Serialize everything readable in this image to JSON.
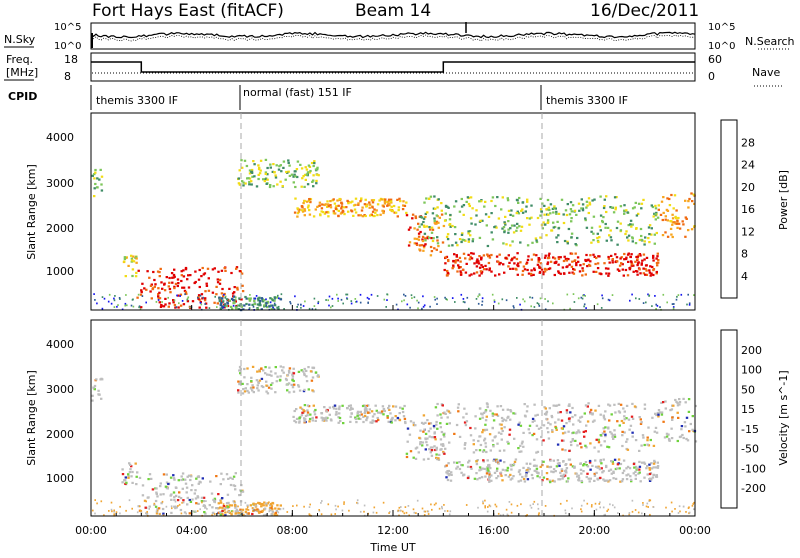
{
  "header": {
    "station": "Fort Hays East (fitACF)",
    "beam": "Beam 14",
    "date": "16/Dec/2011"
  },
  "status_panels": {
    "nsky_label": "N.Sky",
    "nsearch_label": "N.Search",
    "noise_ticks": [
      "10^5",
      "10^0"
    ],
    "noise_right_ticks": [
      "10^5",
      "10^0"
    ],
    "freq_label": "Freq.",
    "freq_unit": "[MHz]",
    "freq_ticks": [
      "18",
      "8"
    ],
    "nave_label": "Nave",
    "nave_ticks": [
      "60",
      "0"
    ],
    "cpid_label": "CPID",
    "modes": [
      {
        "name": "themis 3300 IF",
        "start_h": 0,
        "end_h": 6
      },
      {
        "name": "normal (fast) 151 IF",
        "start_h": 6,
        "end_h": 18
      },
      {
        "name": "themis 3300 IF",
        "start_h": 18,
        "end_h": 24
      }
    ],
    "freq_steps": [
      {
        "start_h": 0,
        "end_h": 2.0,
        "mhz": 15.5
      },
      {
        "start_h": 2.0,
        "end_h": 14.0,
        "mhz": 10.5
      },
      {
        "start_h": 14.0,
        "end_h": 24,
        "mhz": 15.5
      }
    ]
  },
  "chart_data": [
    {
      "type": "heatmap",
      "panel": "power",
      "ylabel": "Slant Range [km]",
      "yticks": [
        "1000",
        "2000",
        "3000",
        "4000"
      ],
      "ylim": [
        180,
        4500
      ],
      "colorbar_label": "Power [dB]",
      "colorbar_ticks": [
        "4",
        "8",
        "12",
        "16",
        "20",
        "24",
        "28"
      ],
      "colors": [
        "#1515ef",
        "#2e5a96",
        "#3f8c66",
        "#7dc65a",
        "#f2dc14",
        "#f7a51e",
        "#f06a10",
        "#e00000"
      ],
      "dashed_markers_h": [
        6,
        18
      ],
      "echo_bands": [
        {
          "t": [
            0,
            0.4
          ],
          "r": [
            2700,
            3300
          ],
          "level": 3
        },
        {
          "t": [
            1.2,
            1.8
          ],
          "r": [
            900,
            1400
          ],
          "level": 4
        },
        {
          "t": [
            1.8,
            6.0
          ],
          "r": [
            250,
            1150
          ],
          "level": 7
        },
        {
          "t": [
            5.0,
            7.5
          ],
          "r": [
            200,
            500
          ],
          "level": 2
        },
        {
          "t": [
            5.8,
            9.0
          ],
          "r": [
            2900,
            3500
          ],
          "level": 3
        },
        {
          "t": [
            8.0,
            12.5
          ],
          "r": [
            2250,
            2650
          ],
          "level": 5
        },
        {
          "t": [
            12.5,
            14.0
          ],
          "r": [
            1400,
            2300
          ],
          "level": 6
        },
        {
          "t": [
            14.0,
            22.5
          ],
          "r": [
            950,
            1450
          ],
          "level": 7
        },
        {
          "t": [
            13.0,
            22.5
          ],
          "r": [
            1600,
            2700
          ],
          "level": 3
        },
        {
          "t": [
            22.5,
            24
          ],
          "r": [
            1800,
            2800
          ],
          "level": 5
        }
      ]
    },
    {
      "type": "heatmap",
      "panel": "velocity",
      "ylabel": "Slant Range [km]",
      "yticks": [
        "1000",
        "2000",
        "3000",
        "4000"
      ],
      "ylim": [
        180,
        4500
      ],
      "colorbar_label": "Velocity [m s^-1]",
      "colorbar_ticks": [
        "200",
        "100",
        "50",
        "15",
        "-15",
        "-50",
        "-100",
        "-200"
      ],
      "colors": [
        "#1e2db4",
        "#3c50a0",
        "#2e8b3a",
        "#6fd23c",
        "#bebebe",
        "#f0a532",
        "#f07814",
        "#e61e1e",
        "#dc0000"
      ],
      "xlabel": "Time UT",
      "xticks": [
        "00:00",
        "04:00",
        "08:00",
        "12:00",
        "16:00",
        "20:00",
        "00:00"
      ],
      "xlim_h": [
        0,
        24
      ],
      "dashed_markers_h": [
        6,
        18
      ]
    }
  ]
}
